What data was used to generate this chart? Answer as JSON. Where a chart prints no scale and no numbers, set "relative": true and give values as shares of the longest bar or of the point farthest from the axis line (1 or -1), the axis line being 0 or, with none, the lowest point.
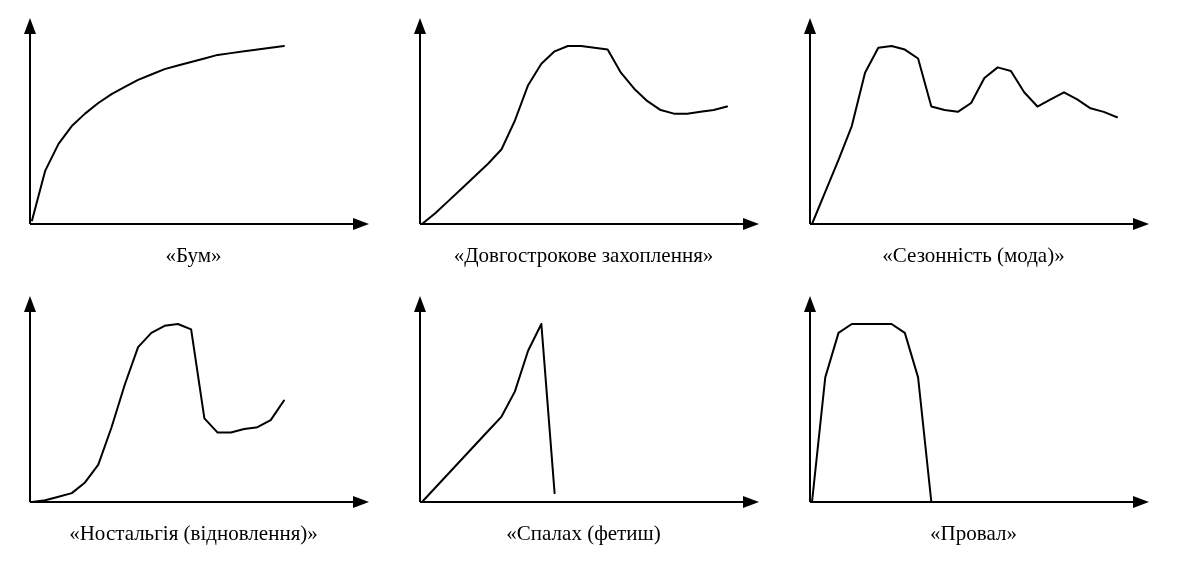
{
  "chart_data": [
    {
      "type": "line",
      "xlabel": "«Бум»",
      "relative": true,
      "categories": [
        null,
        null,
        null,
        null,
        null,
        null,
        null,
        null,
        null,
        null,
        null,
        null,
        null,
        null,
        null,
        null,
        null,
        null,
        null,
        null,
        null,
        null,
        null,
        null
      ],
      "series": [
        {
          "color": "#000000",
          "values": [
            0.02,
            0.3,
            0.45,
            0.55,
            0.62,
            0.68,
            0.73,
            0.77,
            0.81,
            0.84,
            0.87,
            0.89,
            0.91,
            0.93,
            0.95,
            0.96,
            0.97,
            0.98,
            0.99,
            1,
            null,
            null,
            null,
            null
          ]
        }
      ]
    },
    {
      "type": "line",
      "xlabel": "«Довгострокове захоплення»",
      "relative": true,
      "categories": [
        null,
        null,
        null,
        null,
        null,
        null,
        null,
        null,
        null,
        null,
        null,
        null,
        null,
        null,
        null,
        null,
        null,
        null,
        null,
        null,
        null,
        null,
        null,
        null
      ],
      "series": [
        {
          "color": "#000000",
          "values": [
            0,
            0.06,
            0.13,
            0.2,
            0.27,
            0.34,
            0.42,
            0.58,
            0.78,
            0.9,
            0.97,
            1,
            1,
            0.99,
            0.98,
            0.85,
            0.76,
            0.69,
            0.64,
            0.62,
            0.62,
            0.63,
            0.64,
            0.66
          ]
        }
      ]
    },
    {
      "type": "line",
      "xlabel": "«Сезонність (мода)»",
      "relative": true,
      "categories": [
        null,
        null,
        null,
        null,
        null,
        null,
        null,
        null,
        null,
        null,
        null,
        null,
        null,
        null,
        null,
        null,
        null,
        null,
        null,
        null,
        null,
        null,
        null,
        null
      ],
      "series": [
        {
          "color": "#000000",
          "values": [
            0,
            0.18,
            0.36,
            0.55,
            0.85,
            0.99,
            1,
            0.98,
            0.93,
            0.66,
            0.64,
            0.63,
            0.68,
            0.82,
            0.88,
            0.86,
            0.74,
            0.66,
            0.7,
            0.74,
            0.7,
            0.65,
            0.63,
            0.6
          ]
        }
      ]
    },
    {
      "type": "line",
      "xlabel": "«Ностальгія (відновлення)»",
      "relative": true,
      "categories": [
        null,
        null,
        null,
        null,
        null,
        null,
        null,
        null,
        null,
        null,
        null,
        null,
        null,
        null,
        null,
        null,
        null,
        null,
        null,
        null,
        null,
        null,
        null,
        null
      ],
      "series": [
        {
          "color": "#000000",
          "values": [
            0,
            0.01,
            0.03,
            0.05,
            0.11,
            0.21,
            0.42,
            0.66,
            0.87,
            0.95,
            0.99,
            1,
            0.97,
            0.47,
            0.39,
            0.39,
            0.41,
            0.42,
            0.46,
            0.57,
            null,
            null,
            null,
            null
          ]
        }
      ]
    },
    {
      "type": "line",
      "xlabel": "«Спалах (фетиш)",
      "relative": true,
      "categories": [
        null,
        null,
        null,
        null,
        null,
        null,
        null,
        null,
        null,
        null,
        null,
        null,
        null,
        null,
        null,
        null,
        null,
        null,
        null,
        null,
        null,
        null,
        null,
        null
      ],
      "series": [
        {
          "color": "#000000",
          "values": [
            0,
            0.08,
            0.16,
            0.24,
            0.32,
            0.4,
            0.48,
            0.62,
            0.85,
            1,
            0.05,
            null,
            null,
            null,
            null,
            null,
            null,
            null,
            null,
            null,
            null,
            null,
            null,
            null
          ]
        }
      ]
    },
    {
      "type": "line",
      "xlabel": "«Провал»",
      "relative": true,
      "categories": [
        null,
        null,
        null,
        null,
        null,
        null,
        null,
        null,
        null,
        null,
        null,
        null,
        null,
        null,
        null,
        null,
        null,
        null,
        null,
        null,
        null,
        null,
        null,
        null
      ],
      "series": [
        {
          "color": "#000000",
          "values": [
            0,
            0.7,
            0.95,
            1,
            1,
            1,
            1,
            0.95,
            0.7,
            0,
            null,
            null,
            null,
            null,
            null,
            null,
            null,
            null,
            null,
            null,
            null,
            null,
            null,
            null
          ]
        }
      ]
    }
  ]
}
